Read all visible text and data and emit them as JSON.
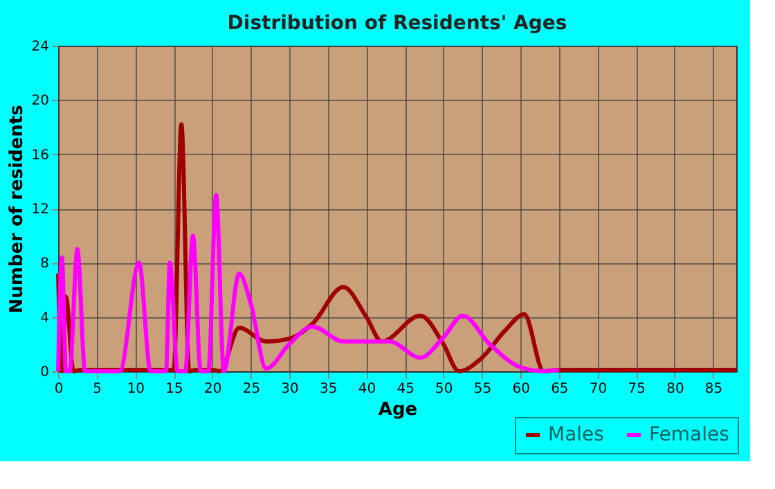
{
  "chart_data": {
    "type": "line",
    "title": "Distribution of Residents' Ages",
    "xlabel": "Age",
    "ylabel": "Number of residents",
    "xlim": [
      0,
      88
    ],
    "xticks": [
      0,
      5,
      10,
      15,
      20,
      25,
      30,
      35,
      40,
      45,
      50,
      55,
      60,
      65,
      70,
      75,
      80,
      85
    ],
    "ylim": [
      0,
      24
    ],
    "yticks": [
      0,
      4,
      8,
      12,
      16,
      20,
      24
    ],
    "grid": true,
    "legend": "bottom right",
    "series": [
      {
        "name": "Males",
        "color": "#a00000",
        "x": [
          0,
          0.5,
          1,
          2,
          3,
          15,
          16,
          17,
          18,
          20,
          21,
          23.5,
          27,
          30,
          33,
          37,
          40,
          42,
          47,
          50,
          52,
          55,
          58,
          60.5,
          63,
          65,
          88
        ],
        "values": [
          7.2,
          0,
          5.5,
          0,
          0.1,
          0.1,
          18.2,
          0,
          0.1,
          0.1,
          0,
          3.2,
          2.2,
          2.4,
          3.5,
          6.2,
          4,
          2.2,
          4.1,
          2,
          0,
          1,
          3,
          4.2,
          0,
          0.1,
          0.1
        ]
      },
      {
        "name": "Females",
        "color": "#ff00ff",
        "x": [
          0,
          0.5,
          1,
          1.5,
          2.5,
          3.5,
          8,
          10.5,
          12,
          14,
          14.5,
          15.5,
          16.5,
          17.5,
          18.5,
          19.5,
          20.5,
          21.5,
          23.5,
          25,
          27,
          30,
          33,
          37,
          40,
          43,
          47,
          50,
          52.5,
          56,
          60,
          63,
          65
        ],
        "values": [
          0,
          8.4,
          0,
          0,
          9,
          0,
          0,
          8,
          0,
          0,
          8,
          0,
          0,
          10,
          0,
          0,
          13,
          0,
          7.2,
          5,
          0.2,
          2,
          3.3,
          2.2,
          2.2,
          2.2,
          1,
          2.5,
          4.1,
          2,
          0.3,
          0,
          0.1
        ]
      }
    ]
  }
}
